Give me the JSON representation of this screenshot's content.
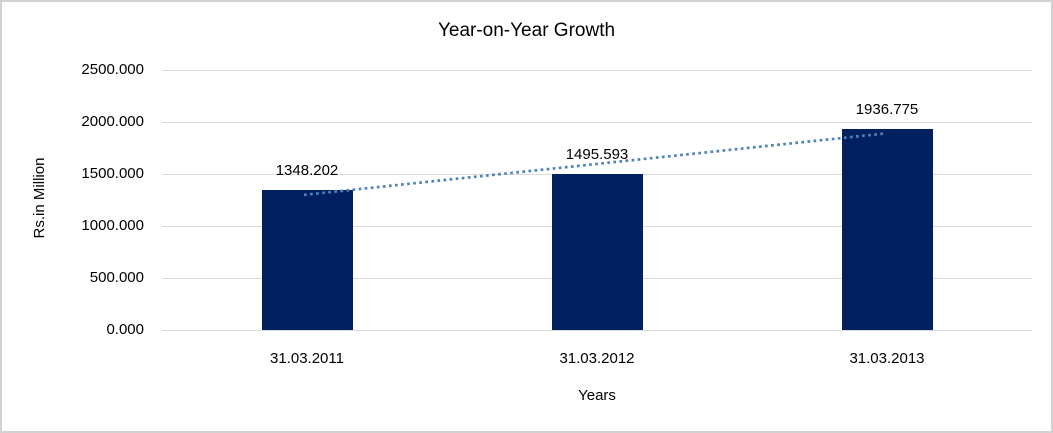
{
  "chart_data": {
    "type": "bar",
    "title": "Year-on-Year Growth",
    "xlabel": "Years",
    "ylabel": "Rs.in Million",
    "categories": [
      "31.03.2011",
      "31.03.2012",
      "31.03.2013"
    ],
    "values": [
      1348.202,
      1495.593,
      1936.775
    ],
    "data_labels": [
      "1348.202",
      "1495.593",
      "1936.775"
    ],
    "ylim": [
      0,
      2500
    ],
    "ytick_interval": 500,
    "ytick_labels": [
      "0.000",
      "500.000",
      "1000.000",
      "1500.000",
      "2000.000",
      "2500.000"
    ],
    "grid": true,
    "legend": "none",
    "bar_color": "#002060",
    "gridline_color": "#d9d9d9",
    "text_color": "#000000",
    "frame_border_color": "#d2d2d2",
    "trendline": {
      "kind": "linear",
      "style": "dotted",
      "color": "#4f81bd"
    }
  }
}
